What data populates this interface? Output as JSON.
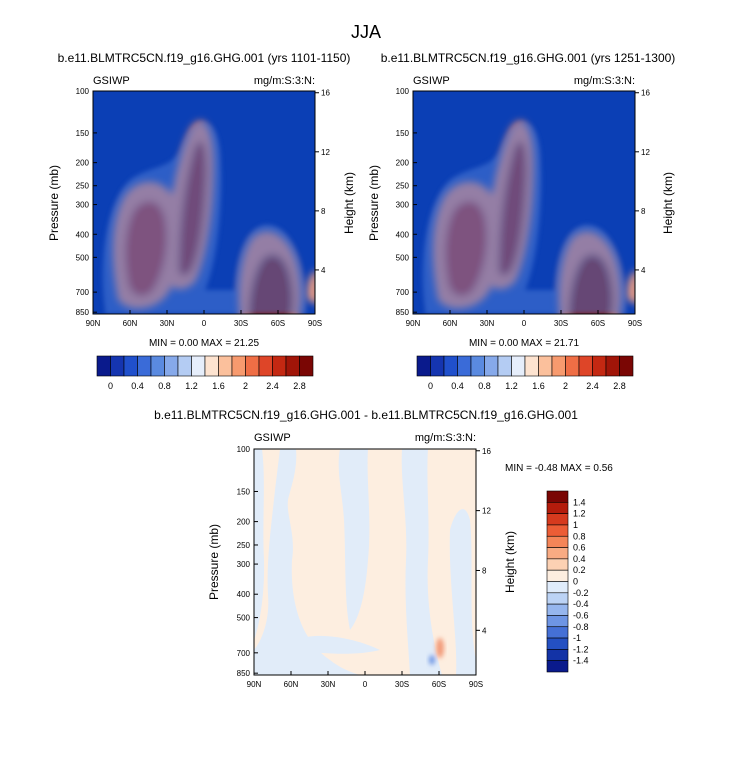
{
  "figure": {
    "title": "JJA",
    "panels": [
      {
        "title": "b.e11.BLMTRC5CN.f19_g16.GHG.001 (yrs 1101-1150)",
        "left_label": "GSIWP",
        "right_label": "mg/m:S:3:N:",
        "stats": "MIN =   0.00  MAX =  21.25"
      },
      {
        "title": "b.e11.BLMTRC5CN.f19_g16.GHG.001 (yrs 1251-1300)",
        "left_label": "GSIWP",
        "right_label": "mg/m:S:3:N:",
        "stats": "MIN =   0.00  MAX =  21.71"
      },
      {
        "title": "b.e11.BLMTRC5CN.f19_g16.GHG.001 - b.e11.BLMTRC5CN.f19_g16.GHG.001",
        "left_label": "GSIWP",
        "right_label": "mg/m:S:3:N:",
        "stats": "MIN =  -0.48  MAX =   0.56"
      }
    ],
    "colorbar_top": {
      "labels": [
        "0",
        "0.4",
        "0.8",
        "1.2",
        "1.6",
        "2",
        "2.4",
        "2.8"
      ],
      "colors": [
        "#0a1a8c",
        "#1535b0",
        "#2050cc",
        "#3a6bd8",
        "#5a8ae0",
        "#86a9ea",
        "#b4ccf3",
        "#e6eefb",
        "#fde3d0",
        "#fbc09c",
        "#f79a6e",
        "#ef6e45",
        "#de4528",
        "#c42812",
        "#a11508",
        "#7a0604"
      ]
    },
    "colorbar_diff": {
      "labels": [
        "1.4",
        "1.2",
        "1",
        "0.8",
        "0.6",
        "0.4",
        "0.2",
        "0",
        "-0.2",
        "-0.4",
        "-0.6",
        "-0.8",
        "-1",
        "-1.2",
        "-1.4"
      ],
      "colors": [
        "#7a0604",
        "#b41c0c",
        "#d63a1e",
        "#ec5d36",
        "#f48558",
        "#f9ab83",
        "#fcd1b3",
        "#fdeee0",
        "#e0ecfb",
        "#bcd3f5",
        "#96b6ee",
        "#6e95e4",
        "#4570d6",
        "#2450c2",
        "#1333a6",
        "#0a1a8c"
      ]
    }
  },
  "chart_data": [
    {
      "type": "heatmap",
      "title": "b.e11.BLMTRC5CN.f19_g16.GHG.001 (yrs 1101-1150)",
      "xlabel": "",
      "ylabel": "Pressure (mb)",
      "ylabel_right": "Height (km)",
      "x_ticks": [
        "90N",
        "60N",
        "30N",
        "0",
        "30S",
        "60S",
        "90S"
      ],
      "y_ticks": [
        "100",
        "150",
        "200",
        "250",
        "300",
        "400",
        "500",
        "700",
        "850"
      ],
      "y_ticks_right": [
        "16",
        "12",
        "8",
        "4"
      ],
      "ylim": [
        865,
        100
      ],
      "min": 0.0,
      "max": 21.25,
      "features": [
        {
          "lat": 40,
          "p": 420,
          "peak": 3.2
        },
        {
          "lat": 8,
          "p": 300,
          "peak": 3.2
        },
        {
          "lat": -58,
          "p": 680,
          "peak": 3.2
        }
      ]
    },
    {
      "type": "heatmap",
      "title": "b.e11.BLMTRC5CN.f19_g16.GHG.001 (yrs 1251-1300)",
      "xlabel": "",
      "ylabel": "Pressure (mb)",
      "ylabel_right": "Height (km)",
      "x_ticks": [
        "90N",
        "60N",
        "30N",
        "0",
        "30S",
        "60S",
        "90S"
      ],
      "y_ticks": [
        "100",
        "150",
        "200",
        "250",
        "300",
        "400",
        "500",
        "700",
        "850"
      ],
      "y_ticks_right": [
        "16",
        "12",
        "8",
        "4"
      ],
      "ylim": [
        865,
        100
      ],
      "min": 0.0,
      "max": 21.71,
      "features": [
        {
          "lat": 40,
          "p": 420,
          "peak": 3.2
        },
        {
          "lat": 8,
          "p": 300,
          "peak": 3.2
        },
        {
          "lat": -58,
          "p": 680,
          "peak": 3.2
        }
      ]
    },
    {
      "type": "heatmap",
      "title": "b.e11.BLMTRC5CN.f19_g16.GHG.001 - b.e11.BLMTRC5CN.f19_g16.GHG.001",
      "xlabel": "",
      "ylabel": "Pressure (mb)",
      "ylabel_right": "Height (km)",
      "x_ticks": [
        "90N",
        "60N",
        "30N",
        "0",
        "30S",
        "60S",
        "90S"
      ],
      "y_ticks": [
        "100",
        "150",
        "200",
        "250",
        "300",
        "400",
        "500",
        "700",
        "850"
      ],
      "y_ticks_right": [
        "16",
        "12",
        "8",
        "4"
      ],
      "ylim": [
        865,
        100
      ],
      "min": -0.48,
      "max": 0.56
    }
  ]
}
